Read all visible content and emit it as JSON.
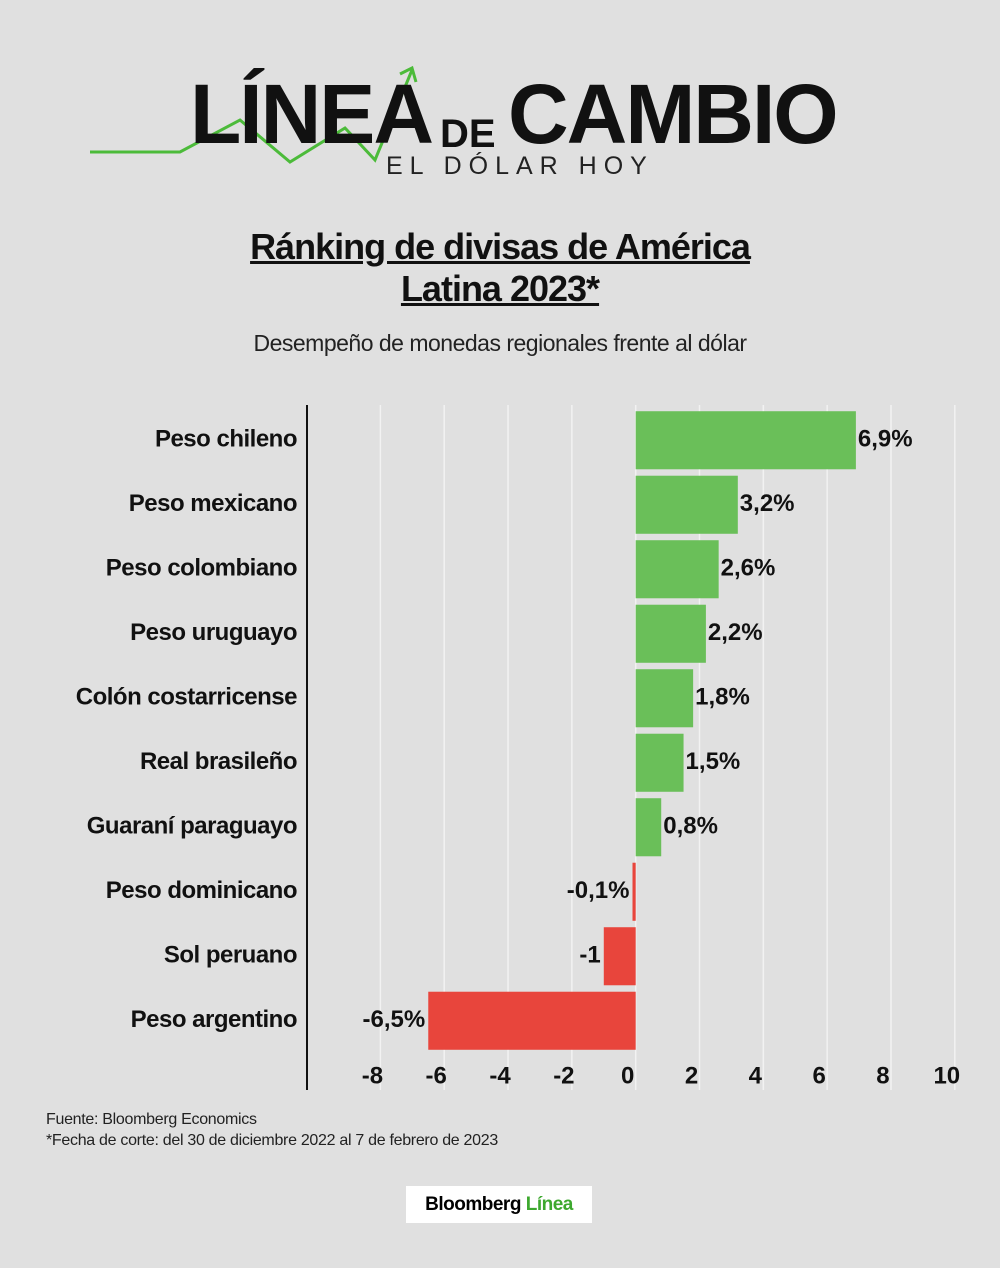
{
  "logo": {
    "left": "LÍNEA",
    "middle": "DE",
    "right": "CAMBIO",
    "tagline": "EL DÓLAR HOY"
  },
  "chart_data": {
    "type": "bar",
    "orientation": "horizontal",
    "title": "Ránking de divisas de América Latina 2023*",
    "subtitle": "Desempeño de monedas regionales frente al dólar",
    "categories": [
      "Peso chileno",
      "Peso mexicano",
      "Peso colombiano",
      "Peso uruguayo",
      "Colón costarricense",
      "Real brasileño",
      "Guaraní paraguayo",
      "Peso dominicano",
      "Sol peruano",
      "Peso argentino"
    ],
    "values": [
      6.9,
      3.2,
      2.6,
      2.2,
      1.8,
      1.5,
      0.8,
      -0.1,
      -1,
      -6.5
    ],
    "value_labels": [
      "6,9%",
      "3,2%",
      "2,6%",
      "2,2%",
      "1,8%",
      "1,5%",
      "0,8%",
      "-0,1%",
      "-1",
      "-6,5%"
    ],
    "colors": [
      "#6abf59",
      "#6abf59",
      "#6abf59",
      "#6abf59",
      "#6abf59",
      "#6abf59",
      "#6abf59",
      "#e8453c",
      "#e8453c",
      "#e8453c"
    ],
    "xlim": [
      -10.3,
      10.1
    ],
    "xticks": [
      -8,
      -6,
      -4,
      -2,
      0,
      2,
      4,
      6,
      8,
      10
    ],
    "grid": true,
    "source": "Fuente: Bloomberg Economics",
    "note": "*Fecha de corte: del 30 de diciembre 2022 al 7 de febrero de 2023"
  },
  "brand": {
    "name": "Bloomberg",
    "accent": "Línea"
  }
}
